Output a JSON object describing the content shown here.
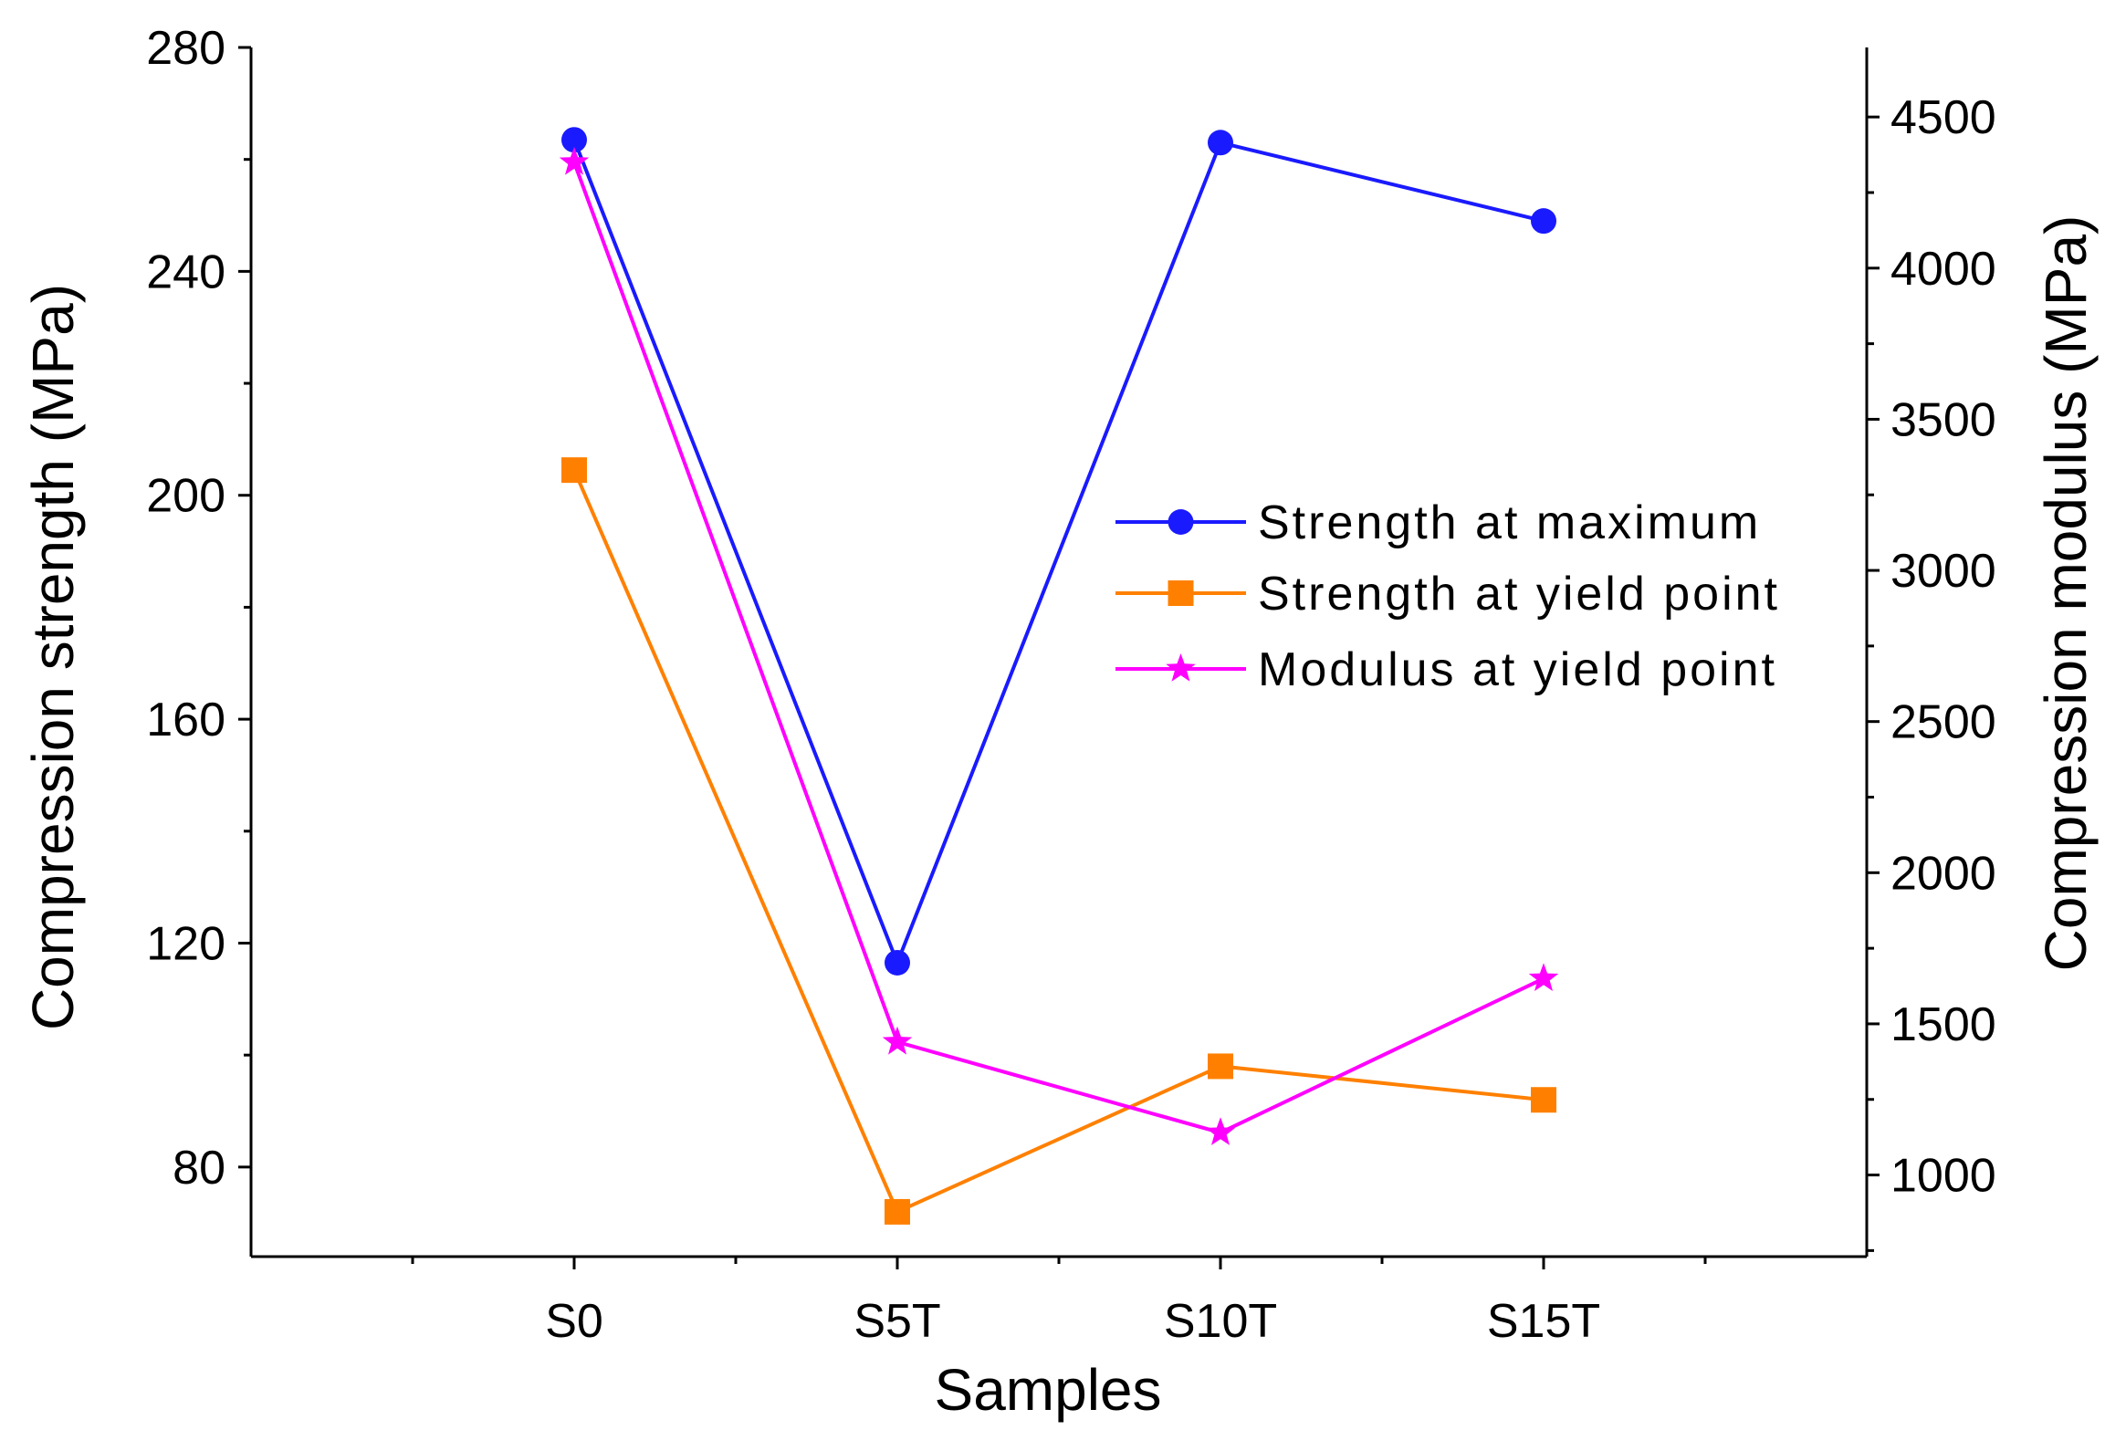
{
  "chart_data": {
    "type": "line",
    "categories": [
      "S0",
      "S5T",
      "S10T",
      "S15T"
    ],
    "xlabel": "Samples",
    "ylabel_left": "Compression strength (MPa)",
    "ylabel_right": "Compression modulus (MPa)",
    "ylim_left": [
      64,
      280
    ],
    "ylim_right": [
      730,
      4730
    ],
    "yticks_left": [
      80,
      120,
      160,
      200,
      240,
      280
    ],
    "yticks_right": [
      1000,
      1500,
      2000,
      2500,
      3000,
      3500,
      4000,
      4500
    ],
    "grid": false,
    "legend_position": "center-right",
    "series": [
      {
        "name": "Strength at maximum",
        "axis": "left",
        "color": "#1a1aff",
        "marker": "circle",
        "values": [
          263.5,
          116.5,
          263,
          249
        ]
      },
      {
        "name": "Strength at yield point",
        "axis": "left",
        "color": "#ff8000",
        "marker": "square",
        "values": [
          204.5,
          72,
          98,
          92
        ]
      },
      {
        "name": "Modulus at yield point",
        "axis": "right",
        "color": "#ff00ff",
        "marker": "star",
        "values": [
          4350,
          1440,
          1140,
          1650
        ]
      }
    ]
  }
}
